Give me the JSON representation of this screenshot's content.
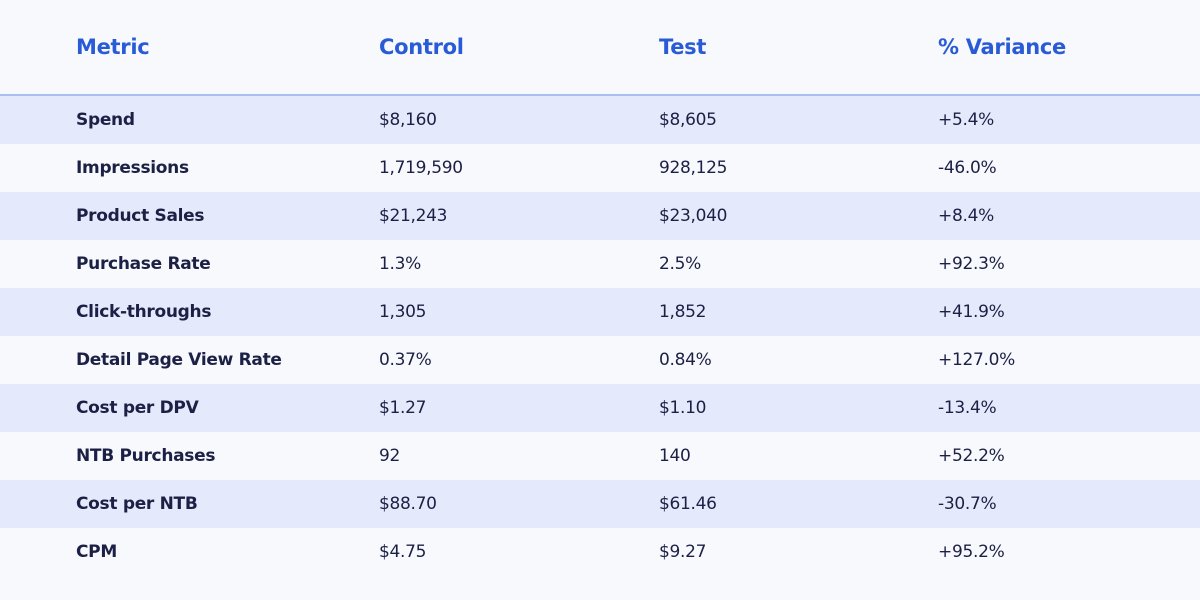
{
  "table": {
    "columns": [
      "Metric",
      "Control",
      "Test",
      "% Variance"
    ],
    "rows": [
      [
        "Spend",
        "$8,160",
        "$8,605",
        "+5.4%"
      ],
      [
        "Impressions",
        "1,719,590",
        "928,125",
        "-46.0%"
      ],
      [
        "Product Sales",
        "$21,243",
        "$23,040",
        "+8.4%"
      ],
      [
        "Purchase Rate",
        "1.3%",
        "2.5%",
        "+92.3%"
      ],
      [
        "Click-throughs",
        "1,305",
        "1,852",
        "+41.9%"
      ],
      [
        "Detail Page View Rate",
        "0.37%",
        "0.84%",
        "+127.0%"
      ],
      [
        "Cost per DPV",
        "$1.27",
        "$1.10",
        "-13.4%"
      ],
      [
        "NTB Purchases",
        "92",
        "140",
        "+52.2%"
      ],
      [
        "Cost per NTB",
        "$88.70",
        "$61.46",
        "-30.7%"
      ],
      [
        "CPM",
        "$4.75",
        "$9.27",
        "+95.2%"
      ]
    ]
  },
  "colors": {
    "header_text": "#2a5bd7",
    "header_rule": "#a8bff0",
    "body_text": "#1c2045",
    "row_stripe": "#e4eafb",
    "background": "#f7f9fd"
  }
}
